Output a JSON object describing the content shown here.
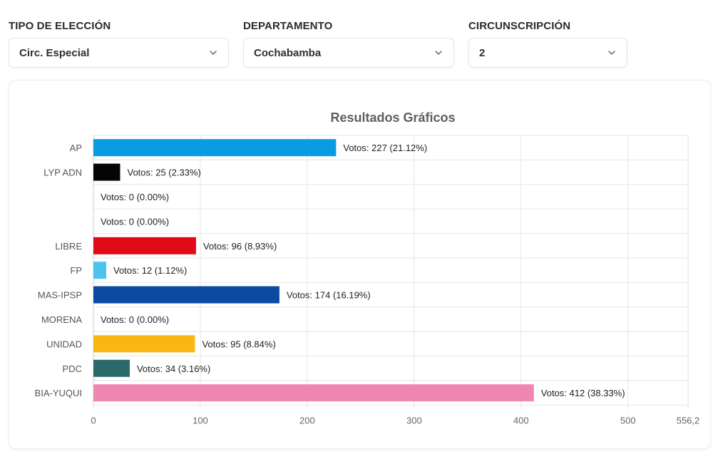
{
  "filters": {
    "tipo": {
      "label": "TIPO DE ELECCIÓN",
      "value": "Circ. Especial"
    },
    "departamento": {
      "label": "DEPARTAMENTO",
      "value": "Cochabamba"
    },
    "circunscripcion": {
      "label": "CIRCUNSCRIPCIÓN",
      "value": "2"
    }
  },
  "colors": {
    "grid": "#e6e6e6",
    "axis": "#cfcfcf"
  },
  "chart_data": {
    "type": "bar",
    "orientation": "horizontal",
    "title": "Resultados Gráficos",
    "xlim": [
      0,
      556.2
    ],
    "x_ticks": [
      {
        "value": 0,
        "label": "0"
      },
      {
        "value": 100,
        "label": "100"
      },
      {
        "value": 200,
        "label": "200"
      },
      {
        "value": 300,
        "label": "300"
      },
      {
        "value": 400,
        "label": "400"
      },
      {
        "value": 500,
        "label": "500"
      },
      {
        "value": 556.2,
        "label": "556,2"
      }
    ],
    "grid": true,
    "bars": [
      {
        "category": "AP",
        "value": 227,
        "label": "Votos: 227 (21.12%)",
        "color": "#0b9be3"
      },
      {
        "category": "LYP ADN",
        "value": 25,
        "label": "Votos: 25 (2.33%)",
        "color": "#050505"
      },
      {
        "category": "",
        "value": 0,
        "label": "Votos: 0 (0.00%)",
        "color": "#cccccc"
      },
      {
        "category": "",
        "value": 0,
        "label": "Votos: 0 (0.00%)",
        "color": "#cccccc"
      },
      {
        "category": "LIBRE",
        "value": 96,
        "label": "Votos: 96 (8.93%)",
        "color": "#e30a17"
      },
      {
        "category": "FP",
        "value": 12,
        "label": "Votos: 12 (1.12%)",
        "color": "#4cc3ee"
      },
      {
        "category": "MAS-IPSP",
        "value": 174,
        "label": "Votos: 174 (16.19%)",
        "color": "#0b4aa1"
      },
      {
        "category": "MORENA",
        "value": 0,
        "label": "Votos: 0 (0.00%)",
        "color": "#8b1e2d"
      },
      {
        "category": "UNIDAD",
        "value": 95,
        "label": "Votos: 95 (8.84%)",
        "color": "#fbb515"
      },
      {
        "category": "PDC",
        "value": 34,
        "label": "Votos: 34 (3.16%)",
        "color": "#2b6a6b"
      },
      {
        "category": "BIA-YUQUI",
        "value": 412,
        "label": "Votos: 412 (38.33%)",
        "color": "#f087b2"
      }
    ]
  }
}
